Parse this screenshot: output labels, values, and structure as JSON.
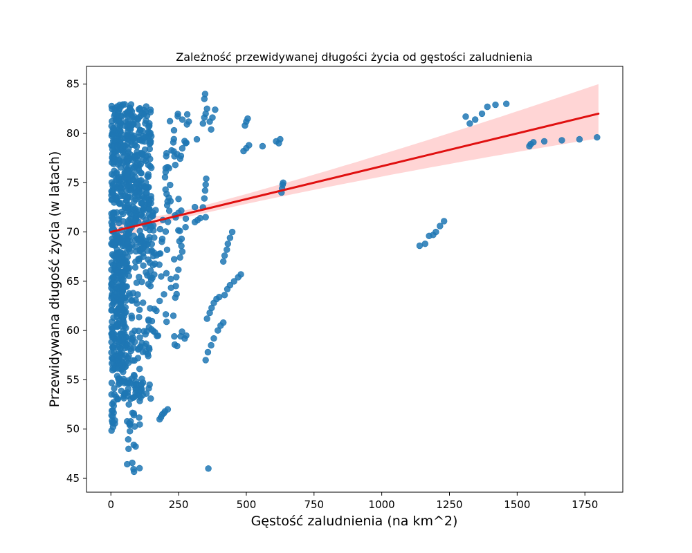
{
  "chart_data": {
    "type": "scatter",
    "title": "Zależność przewidywanej długości życia od gęstości zaludnienia",
    "xlabel": "Gęstość zaludnienia (na km^2)",
    "ylabel": "Przewidywana długość życia (w latach)",
    "xlim": [
      -90,
      1890
    ],
    "ylim": [
      43.6,
      86.8
    ],
    "xticks": [
      0,
      250,
      500,
      750,
      1000,
      1250,
      1500,
      1750
    ],
    "yticks": [
      45,
      50,
      55,
      60,
      65,
      70,
      75,
      80,
      85
    ],
    "grid": false,
    "legend": "none",
    "colors": {
      "points": "#1f77b4",
      "regression_line": "#e01010",
      "confidence_band": "#ffb3b3"
    },
    "regression": {
      "x": [
        0,
        1800
      ],
      "y": [
        70.0,
        82.0
      ],
      "ci_upper_at_end": 85.0,
      "ci_lower_at_end": 79.5
    },
    "clusters": [
      {
        "x": [
          2,
          60
        ],
        "y": [
          56,
          83
        ],
        "n": 420
      },
      {
        "x": [
          60,
          150
        ],
        "y": [
          68,
          83
        ],
        "n": 300
      },
      {
        "x": [
          20,
          150
        ],
        "y": [
          53,
          68
        ],
        "n": 180
      },
      {
        "x": [
          60,
          120
        ],
        "y": [
          45.5,
          56
        ],
        "n": 40
      },
      {
        "x": [
          2,
          15
        ],
        "y": [
          49,
          56
        ],
        "n": 20
      },
      {
        "x": [
          150,
          280
        ],
        "y": [
          58,
          74
        ],
        "n": 70
      },
      {
        "x": [
          200,
          320
        ],
        "y": [
          70,
          82
        ],
        "n": 40
      }
    ],
    "points": [
      [
        180,
        51.0
      ],
      [
        185,
        51.2
      ],
      [
        190,
        51.5
      ],
      [
        195,
        51.6
      ],
      [
        200,
        51.8
      ],
      [
        210,
        52.0
      ],
      [
        350,
        57.0
      ],
      [
        358,
        57.8
      ],
      [
        370,
        58.5
      ],
      [
        380,
        59.2
      ],
      [
        395,
        60.0
      ],
      [
        405,
        60.5
      ],
      [
        415,
        60.8
      ],
      [
        355,
        61.2
      ],
      [
        365,
        61.8
      ],
      [
        372,
        62.3
      ],
      [
        380,
        62.8
      ],
      [
        390,
        63.2
      ],
      [
        400,
        63.4
      ],
      [
        420,
        63.6
      ],
      [
        430,
        64.2
      ],
      [
        440,
        64.6
      ],
      [
        455,
        65.0
      ],
      [
        470,
        65.4
      ],
      [
        480,
        65.7
      ],
      [
        415,
        67.0
      ],
      [
        420,
        67.6
      ],
      [
        428,
        68.2
      ],
      [
        432,
        68.8
      ],
      [
        440,
        69.4
      ],
      [
        448,
        70.0
      ],
      [
        310,
        71.0
      ],
      [
        320,
        71.2
      ],
      [
        330,
        71.4
      ],
      [
        350,
        71.5
      ],
      [
        340,
        72.5
      ],
      [
        345,
        73.4
      ],
      [
        348,
        74.2
      ],
      [
        350,
        74.8
      ],
      [
        352,
        75.4
      ],
      [
        340,
        81.0
      ],
      [
        345,
        81.6
      ],
      [
        350,
        82.0
      ],
      [
        355,
        82.5
      ],
      [
        365,
        81.2
      ],
      [
        370,
        80.4
      ],
      [
        375,
        81.6
      ],
      [
        385,
        82.4
      ],
      [
        345,
        83.5
      ],
      [
        348,
        84.0
      ],
      [
        490,
        78.2
      ],
      [
        500,
        78.5
      ],
      [
        510,
        78.8
      ],
      [
        495,
        80.8
      ],
      [
        500,
        81.2
      ],
      [
        505,
        81.5
      ],
      [
        560,
        78.7
      ],
      [
        610,
        79.2
      ],
      [
        620,
        79.0
      ],
      [
        625,
        79.4
      ],
      [
        630,
        74.0
      ],
      [
        632,
        74.4
      ],
      [
        634,
        74.8
      ],
      [
        636,
        75.0
      ],
      [
        360,
        46.0
      ],
      [
        1140,
        68.6
      ],
      [
        1160,
        68.8
      ],
      [
        1175,
        69.6
      ],
      [
        1190,
        69.7
      ],
      [
        1200,
        70.0
      ],
      [
        1215,
        70.6
      ],
      [
        1230,
        71.1
      ],
      [
        1310,
        81.7
      ],
      [
        1325,
        81.0
      ],
      [
        1345,
        81.4
      ],
      [
        1370,
        82.0
      ],
      [
        1390,
        82.7
      ],
      [
        1420,
        82.9
      ],
      [
        1460,
        83.0
      ],
      [
        1545,
        78.7
      ],
      [
        1550,
        78.9
      ],
      [
        1560,
        79.1
      ],
      [
        1600,
        79.2
      ],
      [
        1665,
        79.3
      ],
      [
        1730,
        79.4
      ],
      [
        1795,
        79.6
      ]
    ]
  }
}
